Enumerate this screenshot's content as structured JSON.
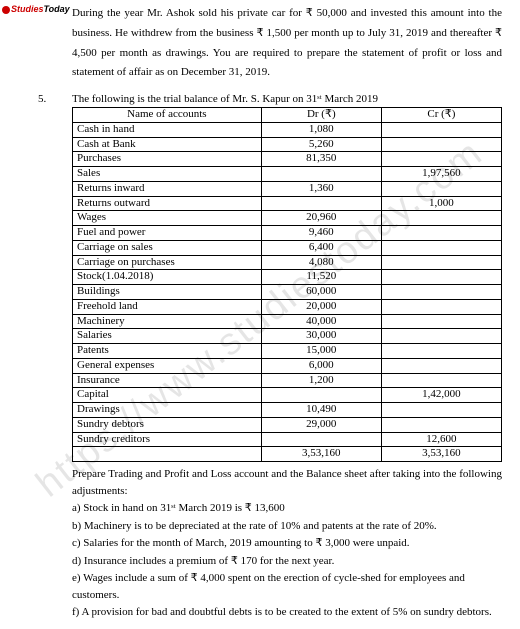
{
  "logo": {
    "icon": "●",
    "text1": "Studies",
    "text2": "Today"
  },
  "watermark": "https://www.studiestoday.com",
  "intro_para": "During the year Mr. Ashok sold his private car for ₹ 50,000 and invested this amount into the business. He withdrew from the business ₹ 1,500 per month up to July 31, 2019 and thereafter ₹ 4,500 per month as drawings. You are required to prepare the statement of profit or loss and statement of affair as on December 31, 2019.",
  "q_num": "5.",
  "q_intro": "The following is the trial balance of Mr. S. Kapur on 31ˢᵗ March 2019",
  "table": {
    "headers": {
      "name": "Name of accounts",
      "dr": "Dr (₹)",
      "cr": "Cr (₹)"
    },
    "rows": [
      {
        "name": "Cash in hand",
        "dr": "1,080",
        "cr": ""
      },
      {
        "name": "Cash at Bank",
        "dr": "5,260",
        "cr": ""
      },
      {
        "name": "Purchases",
        "dr": "81,350",
        "cr": ""
      },
      {
        "name": "Sales",
        "dr": "",
        "cr": "1,97,560"
      },
      {
        "name": "Returns inward",
        "dr": "1,360",
        "cr": ""
      },
      {
        "name": "Returns outward",
        "dr": "",
        "cr": "1,000"
      },
      {
        "name": "Wages",
        "dr": "20,960",
        "cr": ""
      },
      {
        "name": "Fuel and power",
        "dr": "9,460",
        "cr": ""
      },
      {
        "name": "Carriage on sales",
        "dr": "6,400",
        "cr": ""
      },
      {
        "name": "Carriage on purchases",
        "dr": "4,080",
        "cr": ""
      },
      {
        "name": "Stock(1.04.2018)",
        "dr": "11,520",
        "cr": ""
      },
      {
        "name": "Buildings",
        "dr": "60,000",
        "cr": ""
      },
      {
        "name": "Freehold land",
        "dr": "20,000",
        "cr": ""
      },
      {
        "name": "Machinery",
        "dr": "40,000",
        "cr": ""
      },
      {
        "name": "Salaries",
        "dr": "30,000",
        "cr": ""
      },
      {
        "name": "Patents",
        "dr": "15,000",
        "cr": ""
      },
      {
        "name": "General expenses",
        "dr": "6,000",
        "cr": ""
      },
      {
        "name": "Insurance",
        "dr": "1,200",
        "cr": ""
      },
      {
        "name": "Capital",
        "dr": "",
        "cr": "1,42,000"
      },
      {
        "name": "Drawings",
        "dr": "10,490",
        "cr": ""
      },
      {
        "name": "Sundry debtors",
        "dr": "29,000",
        "cr": ""
      },
      {
        "name": "Sundry creditors",
        "dr": "",
        "cr": "12,600"
      }
    ],
    "totals": {
      "name": "",
      "dr": "3,53,160",
      "cr": "3,53,160"
    }
  },
  "below": "Prepare Trading and Profit and Loss account and the Balance sheet after taking into the following adjustments:",
  "adjustments": [
    "a) Stock in hand on 31ˢᵗ March 2019 is ₹ 13,600",
    "b) Machinery is to be depreciated at the rate of 10% and patents at the rate of 20%.",
    "c) Salaries for the month of March, 2019 amounting to ₹ 3,000 were unpaid.",
    "d) Insurance includes a premium of ₹ 170 for the next year.",
    "e) Wages include a sum of ₹ 4,000 spent on the erection of cycle-shed for employees and customers.",
    "f) A provision for bad and doubtful debts is to be created to the extent of 5% on sundry debtors."
  ]
}
